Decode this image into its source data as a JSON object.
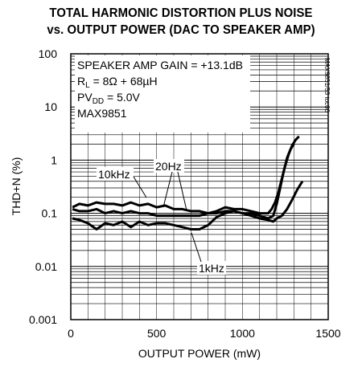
{
  "chart_data": {
    "type": "line",
    "title": "TOTAL HARMONIC DISTORTION PLUS NOISE",
    "subtitle": "vs. OUTPUT POWER (DAC TO SPEAKER AMP)",
    "xlabel": "OUTPUT POWER (mW)",
    "ylabel": "THD+N (%)",
    "xlim": [
      0,
      1500
    ],
    "ylim": [
      0.001,
      100
    ],
    "yscale": "log",
    "grid": true,
    "x_ticks": [
      "0",
      "500",
      "1000",
      "1500"
    ],
    "y_ticks": [
      "100",
      "10",
      "1",
      "0.1",
      "0.01",
      "0.001"
    ],
    "annotations": [
      "SPEAKER AMP GAIN = +13.1dB",
      "R",
      "L",
      " = 8Ω + 68µH",
      "PV",
      "DD",
      " = 5.0V",
      "MAX9851"
    ],
    "code": "MAX9851/53 toc06",
    "series": [
      {
        "name": "10kHz",
        "x": [
          10,
          50,
          100,
          150,
          200,
          250,
          300,
          350,
          400,
          450,
          500,
          550,
          600,
          650,
          700,
          750,
          800,
          850,
          900,
          950,
          1000,
          1050,
          1100,
          1150,
          1180,
          1200,
          1230,
          1260,
          1290,
          1320,
          1350
        ],
        "y": [
          0.13,
          0.15,
          0.14,
          0.16,
          0.15,
          0.15,
          0.14,
          0.16,
          0.14,
          0.15,
          0.13,
          0.14,
          0.12,
          0.12,
          0.11,
          0.11,
          0.1,
          0.1,
          0.11,
          0.11,
          0.1,
          0.09,
          0.08,
          0.075,
          0.07,
          0.08,
          0.09,
          0.12,
          0.18,
          0.28,
          0.4
        ]
      },
      {
        "name": "20Hz",
        "x": [
          10,
          50,
          100,
          150,
          200,
          250,
          300,
          350,
          400,
          450,
          500,
          550,
          600,
          650,
          700,
          750,
          800,
          850,
          900,
          950,
          1000,
          1050,
          1100,
          1150,
          1170,
          1190,
          1210,
          1230,
          1250,
          1270,
          1290,
          1310,
          1330
        ],
        "y": [
          0.12,
          0.11,
          0.11,
          0.12,
          0.1,
          0.11,
          0.1,
          0.11,
          0.1,
          0.1,
          0.09,
          0.09,
          0.09,
          0.09,
          0.09,
          0.09,
          0.1,
          0.11,
          0.13,
          0.12,
          0.12,
          0.11,
          0.1,
          0.1,
          0.12,
          0.16,
          0.25,
          0.45,
          0.8,
          1.3,
          1.9,
          2.4,
          2.8
        ]
      },
      {
        "name": "1kHz",
        "x": [
          10,
          50,
          100,
          150,
          200,
          250,
          300,
          350,
          400,
          450,
          500,
          550,
          600,
          650,
          700,
          750,
          800,
          850,
          900,
          950,
          1000,
          1050,
          1100,
          1150,
          1180,
          1200,
          1220,
          1240,
          1260,
          1280,
          1300
        ],
        "y": [
          0.08,
          0.075,
          0.065,
          0.05,
          0.065,
          0.06,
          0.07,
          0.055,
          0.07,
          0.06,
          0.065,
          0.065,
          0.06,
          0.055,
          0.05,
          0.05,
          0.06,
          0.085,
          0.1,
          0.11,
          0.1,
          0.1,
          0.09,
          0.08,
          0.09,
          0.15,
          0.3,
          0.6,
          1.1,
          1.6,
          2.0
        ]
      }
    ],
    "series_labels": [
      "10kHz",
      "20Hz",
      "1kHz"
    ]
  }
}
